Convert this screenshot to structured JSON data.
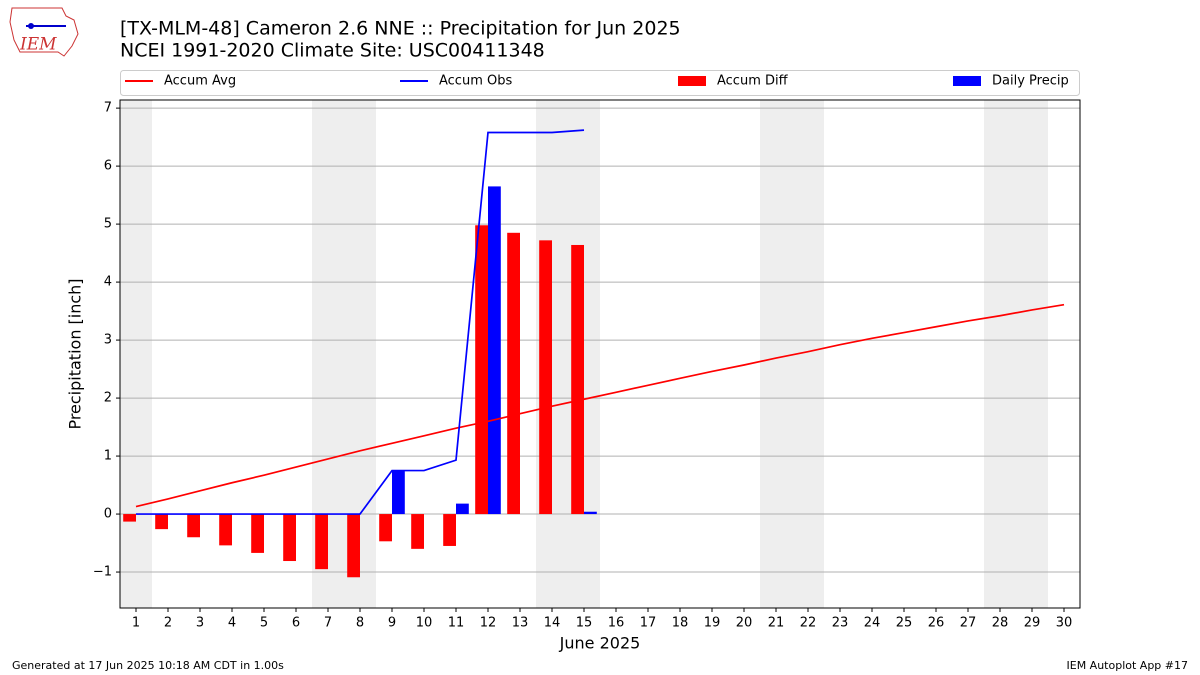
{
  "chart_data": {
    "type": "bar_line",
    "title": "[TX-MLM-48] Cameron 2.6 NNE :: Precipitation for Jun 2025",
    "subtitle": "NCEI 1991-2020 Climate Site: USC00411348",
    "x_label": "June 2025",
    "y_label": "Precipitation [inch]",
    "x": [
      1,
      2,
      3,
      4,
      5,
      6,
      7,
      8,
      9,
      10,
      11,
      12,
      13,
      14,
      15,
      16,
      17,
      18,
      19,
      20,
      21,
      22,
      23,
      24,
      25,
      26,
      27,
      28,
      29,
      30
    ],
    "xlim": [
      0.5,
      30.5
    ],
    "xticks": [
      1,
      2,
      3,
      4,
      5,
      6,
      7,
      8,
      9,
      10,
      11,
      12,
      13,
      14,
      15,
      16,
      17,
      18,
      19,
      20,
      21,
      22,
      23,
      24,
      25,
      26,
      27,
      28,
      29,
      30
    ],
    "ylim": [
      -1.62,
      7.14
    ],
    "yticks": [
      {
        "value": -1,
        "label": "−1"
      },
      0,
      1,
      2,
      3,
      4,
      5,
      6,
      7
    ],
    "grid": true,
    "shaded_days": [
      1,
      7,
      8,
      14,
      15,
      21,
      22,
      28,
      29
    ],
    "shade_color": "#eeeeee",
    "series": [
      {
        "name": "Accum Avg",
        "kind": "line",
        "color": "#ff0000",
        "values": [
          0.13,
          0.26,
          0.4,
          0.54,
          0.67,
          0.81,
          0.95,
          1.09,
          1.22,
          1.35,
          1.48,
          1.6,
          1.73,
          1.86,
          1.98,
          2.1,
          2.22,
          2.34,
          2.46,
          2.57,
          2.69,
          2.8,
          2.92,
          3.03,
          3.13,
          3.23,
          3.33,
          3.42,
          3.52,
          3.61
        ]
      },
      {
        "name": "Accum Obs",
        "kind": "line",
        "color": "#0000ff",
        "values": [
          0,
          0,
          0,
          0,
          0,
          0,
          0,
          0,
          0.75,
          0.75,
          0.93,
          6.58,
          6.58,
          6.58,
          6.62,
          null,
          null,
          null,
          null,
          null,
          null,
          null,
          null,
          null,
          null,
          null,
          null,
          null,
          null,
          null
        ]
      },
      {
        "name": "Accum Diff",
        "kind": "bar",
        "offset": -0.2,
        "color": "#ff0000",
        "values": [
          -0.13,
          -0.26,
          -0.4,
          -0.54,
          -0.67,
          -0.81,
          -0.95,
          -1.09,
          -0.47,
          -0.6,
          -0.55,
          4.98,
          4.85,
          4.72,
          4.64,
          null,
          null,
          null,
          null,
          null,
          null,
          null,
          null,
          null,
          null,
          null,
          null,
          null,
          null,
          null
        ]
      },
      {
        "name": "Daily Precip",
        "kind": "bar",
        "offset": 0.2,
        "color": "#0000ff",
        "values": [
          0,
          0,
          0,
          0,
          0,
          0,
          0,
          0,
          0.75,
          0,
          0.18,
          5.65,
          0,
          0,
          0.04,
          null,
          null,
          null,
          null,
          null,
          null,
          null,
          null,
          null,
          null,
          null,
          null,
          null,
          null,
          null
        ]
      }
    ],
    "footer_left": "Generated at 17 Jun 2025 10:18 AM CDT in 1.00s",
    "footer_right": "IEM Autoplot App #17",
    "logo_text": "IEM"
  }
}
